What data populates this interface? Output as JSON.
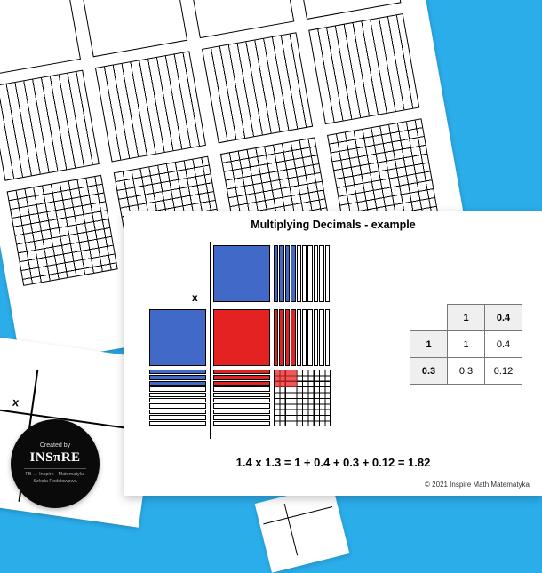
{
  "bg_color": "#2badea",
  "badge": {
    "created": "Created by",
    "brand_prefix": "INS",
    "brand_pi": "π",
    "brand_suffix": "RE",
    "sub1": "FB → Inspire - Matematyka",
    "sub2": "Szkoła Podstawowa"
  },
  "card": {
    "title": "Multiplying Decimals - example",
    "x_symbol": "x",
    "factor_a": "1.4",
    "factor_b": "1.3",
    "equation": "1.4 x 1.3 = 1 + 0.4 + 0.3 + 0.12 = 1.82",
    "copyright": "© 2021  Inspire Math Matematyka",
    "area_model": {
      "unit_color": "#4169c8",
      "product_color": "#e42222",
      "grid_color": "#000000",
      "h_tenths_total": 10,
      "h_tenths_filled": 4,
      "v_tenths_total": 10,
      "v_tenths_filled": 3
    },
    "table": {
      "col_headers": [
        "1",
        "0.4"
      ],
      "row_headers": [
        "1",
        "0.3"
      ],
      "cells": [
        [
          "1",
          "0.4"
        ],
        [
          "0.3",
          "0.12"
        ]
      ],
      "header_bg": "#efefef",
      "border_color": "#777777"
    }
  },
  "mini": {
    "x_symbol": "x"
  }
}
